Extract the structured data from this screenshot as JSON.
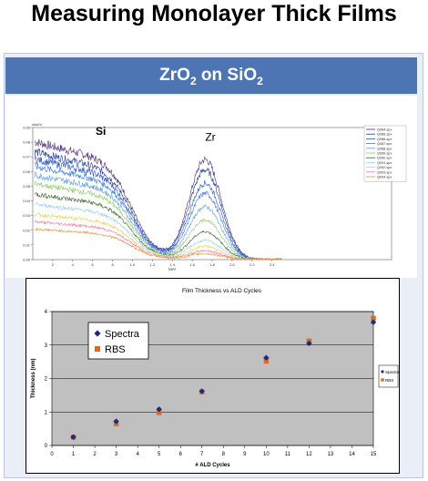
{
  "slide_title": "Measuring Monolayer Thick Films",
  "panel_title": {
    "main1": "ZrO",
    "sub1": "2",
    "main2": " on SiO",
    "sub2": "2"
  },
  "chart_data": [
    {
      "type": "line",
      "title": "",
      "xlabel": "keV",
      "ylabel": "cts/eV",
      "xlim": [
        0,
        3.6
      ],
      "ylim": [
        0,
        0.09
      ],
      "x_ticks": [
        "2",
        "4",
        "6",
        "8",
        "1.0",
        "1.2",
        "1.4",
        "1.6",
        "1.8",
        "2.0",
        "2.2",
        "2.4"
      ],
      "x_tick_values": [
        0.2,
        0.4,
        0.6,
        0.8,
        1.0,
        1.2,
        1.4,
        1.6,
        1.8,
        2.0,
        2.2,
        2.4
      ],
      "y_ticks": [
        "0.00",
        "0.01",
        "0.02",
        "0.03",
        "0.04",
        "0.05",
        "0.06",
        "0.07",
        "0.08",
        "0.09"
      ],
      "y_tick_values": [
        0,
        0.01,
        0.02,
        0.03,
        0.04,
        0.05,
        0.06,
        0.07,
        0.08,
        0.09
      ],
      "annotations": [
        {
          "text": "Si",
          "x": 0.63,
          "y": 0.085
        },
        {
          "text": "Zr",
          "x": 1.73,
          "y": 0.081
        }
      ],
      "legend_position": "top-right",
      "series": [
        {
          "name": "Q084.spx",
          "color": "#4b2a7a",
          "si_level": 0.081,
          "zr_peak": 0.068
        },
        {
          "name": "Q085.spx",
          "color": "#1f3c99",
          "si_level": 0.074,
          "zr_peak": 0.061
        },
        {
          "name": "Q086.spx",
          "color": "#2a55c0",
          "si_level": 0.069,
          "zr_peak": 0.052
        },
        {
          "name": "Q087.spx",
          "color": "#3f78d6",
          "si_level": 0.064,
          "zr_peak": 0.045
        },
        {
          "name": "Q088.spx",
          "color": "#5c9ad8",
          "si_level": 0.058,
          "zr_peak": 0.036
        },
        {
          "name": "Q089.spx",
          "color": "#8ec96a",
          "si_level": 0.052,
          "zr_peak": 0.027
        },
        {
          "name": "Q090.spx",
          "color": "#3d5f2c",
          "si_level": 0.045,
          "zr_peak": 0.019
        },
        {
          "name": "Q091.spx",
          "color": "#9fd0e6",
          "si_level": 0.038,
          "zr_peak": 0.013
        },
        {
          "name": "Q092.spx",
          "color": "#e1d45a",
          "si_level": 0.031,
          "zr_peak": 0.009
        },
        {
          "name": "Q093.spx",
          "color": "#f07a9a",
          "si_level": 0.026,
          "zr_peak": 0.006
        },
        {
          "name": "Q094.spx",
          "color": "#e0903c",
          "si_level": 0.021,
          "zr_peak": 0.004
        }
      ]
    },
    {
      "type": "scatter",
      "title": "Film Thickness vs ALD Cycles",
      "xlabel": "# ALD Cycles",
      "ylabel": "Thickness (nm)",
      "xlim": [
        0,
        15
      ],
      "ylim": [
        0,
        4
      ],
      "x_ticks": [
        "0",
        "1",
        "2",
        "3",
        "4",
        "5",
        "6",
        "7",
        "8",
        "9",
        "10",
        "11",
        "12",
        "13",
        "14",
        "15"
      ],
      "y_ticks": [
        "0",
        "1",
        "2",
        "3",
        "4"
      ],
      "grid": true,
      "background": "#c0c0c0",
      "legend_position": "right",
      "inset_legend_position": "top-left",
      "series": [
        {
          "name": "Spectra",
          "marker": "diamond",
          "color": "#1f2a80",
          "x": [
            1,
            3,
            5,
            7,
            10,
            12,
            15
          ],
          "y": [
            0.25,
            0.72,
            1.08,
            1.62,
            2.62,
            3.05,
            3.68
          ]
        },
        {
          "name": "RBS",
          "marker": "square",
          "color": "#d96b24",
          "x": [
            1,
            3,
            5,
            7,
            10,
            12,
            15
          ],
          "y": [
            0.25,
            0.65,
            0.98,
            1.6,
            2.52,
            3.12,
            3.8
          ]
        }
      ]
    }
  ]
}
